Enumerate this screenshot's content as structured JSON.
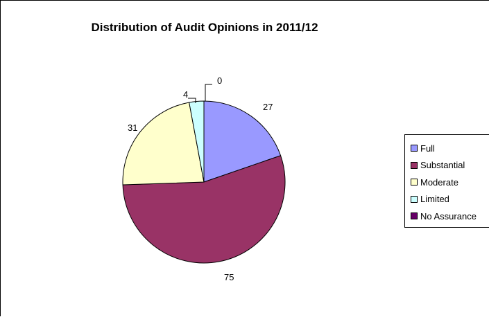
{
  "chart_data": {
    "type": "pie",
    "title": "Distribution of Audit Opinions in 2011/12",
    "categories": [
      "Full",
      "Substantial",
      "Moderate",
      "Limited",
      "No Assurance"
    ],
    "values": [
      27,
      75,
      31,
      4,
      0
    ],
    "colors": [
      "#9999FF",
      "#993366",
      "#FFFFCC",
      "#CCFFFF",
      "#660066"
    ],
    "data_labels": [
      "27",
      "75",
      "31",
      "4",
      "0"
    ],
    "legend_position": "right"
  }
}
